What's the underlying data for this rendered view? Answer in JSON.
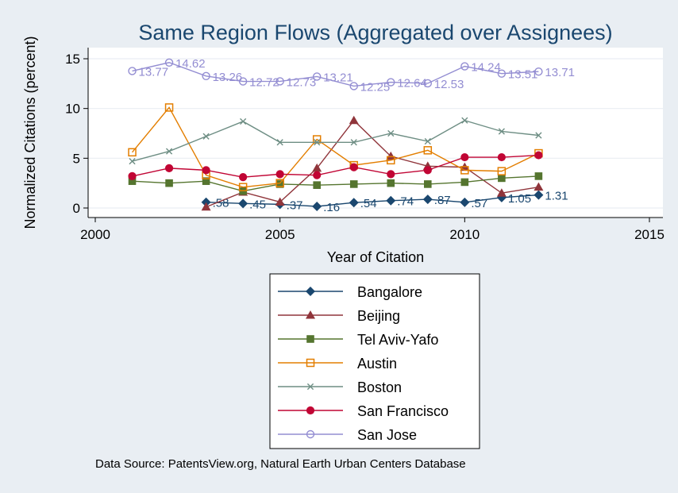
{
  "chart_data": {
    "type": "line",
    "title": "Same Region Flows (Aggregated over Assignees)",
    "xlabel": "Year of Citation",
    "ylabel": "Normalized Citations (percent)",
    "xlim": [
      2000,
      2015
    ],
    "ylim": [
      0,
      15
    ],
    "xticks": [
      2000,
      2005,
      2010,
      2015
    ],
    "yticks": [
      0,
      5,
      10,
      15
    ],
    "grid": true,
    "legend_position": "bottom",
    "series": [
      {
        "name": "Bangalore",
        "color": "#1a476f",
        "marker": "diamond",
        "labeled": true,
        "x": [
          2003,
          2004,
          2005,
          2006,
          2007,
          2008,
          2009,
          2010,
          2011,
          2012
        ],
        "y": [
          0.58,
          0.45,
          0.37,
          0.16,
          0.54,
          0.74,
          0.87,
          0.57,
          1.05,
          1.31
        ],
        "labels": [
          ".58",
          ".45",
          ".37",
          ".16",
          ".54",
          ".74",
          ".87",
          ".57",
          "1.05",
          "1.31"
        ]
      },
      {
        "name": "Beijing",
        "color": "#90353b",
        "marker": "triangle",
        "x": [
          2003,
          2004,
          2005,
          2006,
          2007,
          2008,
          2009,
          2010,
          2011,
          2012
        ],
        "y": [
          0.1,
          1.6,
          0.6,
          4.0,
          8.8,
          5.2,
          4.2,
          4.1,
          1.5,
          2.1
        ]
      },
      {
        "name": "Tel Aviv-Yafo",
        "color": "#55752f",
        "marker": "square",
        "x": [
          2001,
          2002,
          2003,
          2004,
          2005,
          2006,
          2007,
          2008,
          2009,
          2010,
          2011,
          2012
        ],
        "y": [
          2.7,
          2.5,
          2.7,
          1.7,
          2.4,
          2.3,
          2.4,
          2.5,
          2.4,
          2.6,
          3.0,
          3.2
        ]
      },
      {
        "name": "Austin",
        "color": "#e37e00",
        "marker": "square-hollow",
        "x": [
          2001,
          2002,
          2003,
          2004,
          2005,
          2006,
          2007,
          2008,
          2009,
          2010,
          2011,
          2012
        ],
        "y": [
          5.6,
          10.1,
          3.3,
          2.1,
          2.5,
          6.9,
          4.3,
          4.8,
          5.8,
          3.8,
          3.7,
          5.5
        ]
      },
      {
        "name": "Boston",
        "color": "#6e8e84",
        "marker": "x",
        "x": [
          2001,
          2002,
          2003,
          2004,
          2005,
          2006,
          2007,
          2008,
          2009,
          2010,
          2011,
          2012
        ],
        "y": [
          4.7,
          5.7,
          7.2,
          8.7,
          6.6,
          6.6,
          6.6,
          7.5,
          6.7,
          8.8,
          7.7,
          7.3
        ]
      },
      {
        "name": "San Francisco",
        "color": "#c10534",
        "marker": "circle",
        "x": [
          2001,
          2002,
          2003,
          2004,
          2005,
          2006,
          2007,
          2008,
          2009,
          2010,
          2011,
          2012
        ],
        "y": [
          3.2,
          4.0,
          3.8,
          3.1,
          3.4,
          3.3,
          4.1,
          3.4,
          3.8,
          5.1,
          5.1,
          5.3
        ]
      },
      {
        "name": "San Jose",
        "color": "#938dd2",
        "marker": "circle-hollow",
        "labeled": true,
        "x": [
          2001,
          2002,
          2003,
          2004,
          2005,
          2006,
          2007,
          2008,
          2009,
          2010,
          2011,
          2012
        ],
        "y": [
          13.77,
          14.62,
          13.26,
          12.72,
          12.73,
          13.21,
          12.25,
          12.64,
          12.53,
          14.24,
          13.51,
          13.71
        ],
        "labels": [
          "13.77",
          "14.62",
          "13.26",
          "12.72",
          "12.73",
          "13.21",
          "12.25",
          "12.64",
          "12.53",
          "14.24",
          "13.51",
          "13.71"
        ]
      }
    ]
  },
  "footer": {
    "source_note": "Data Source: PatentsView.org, Natural Earth Urban Centers Database"
  }
}
